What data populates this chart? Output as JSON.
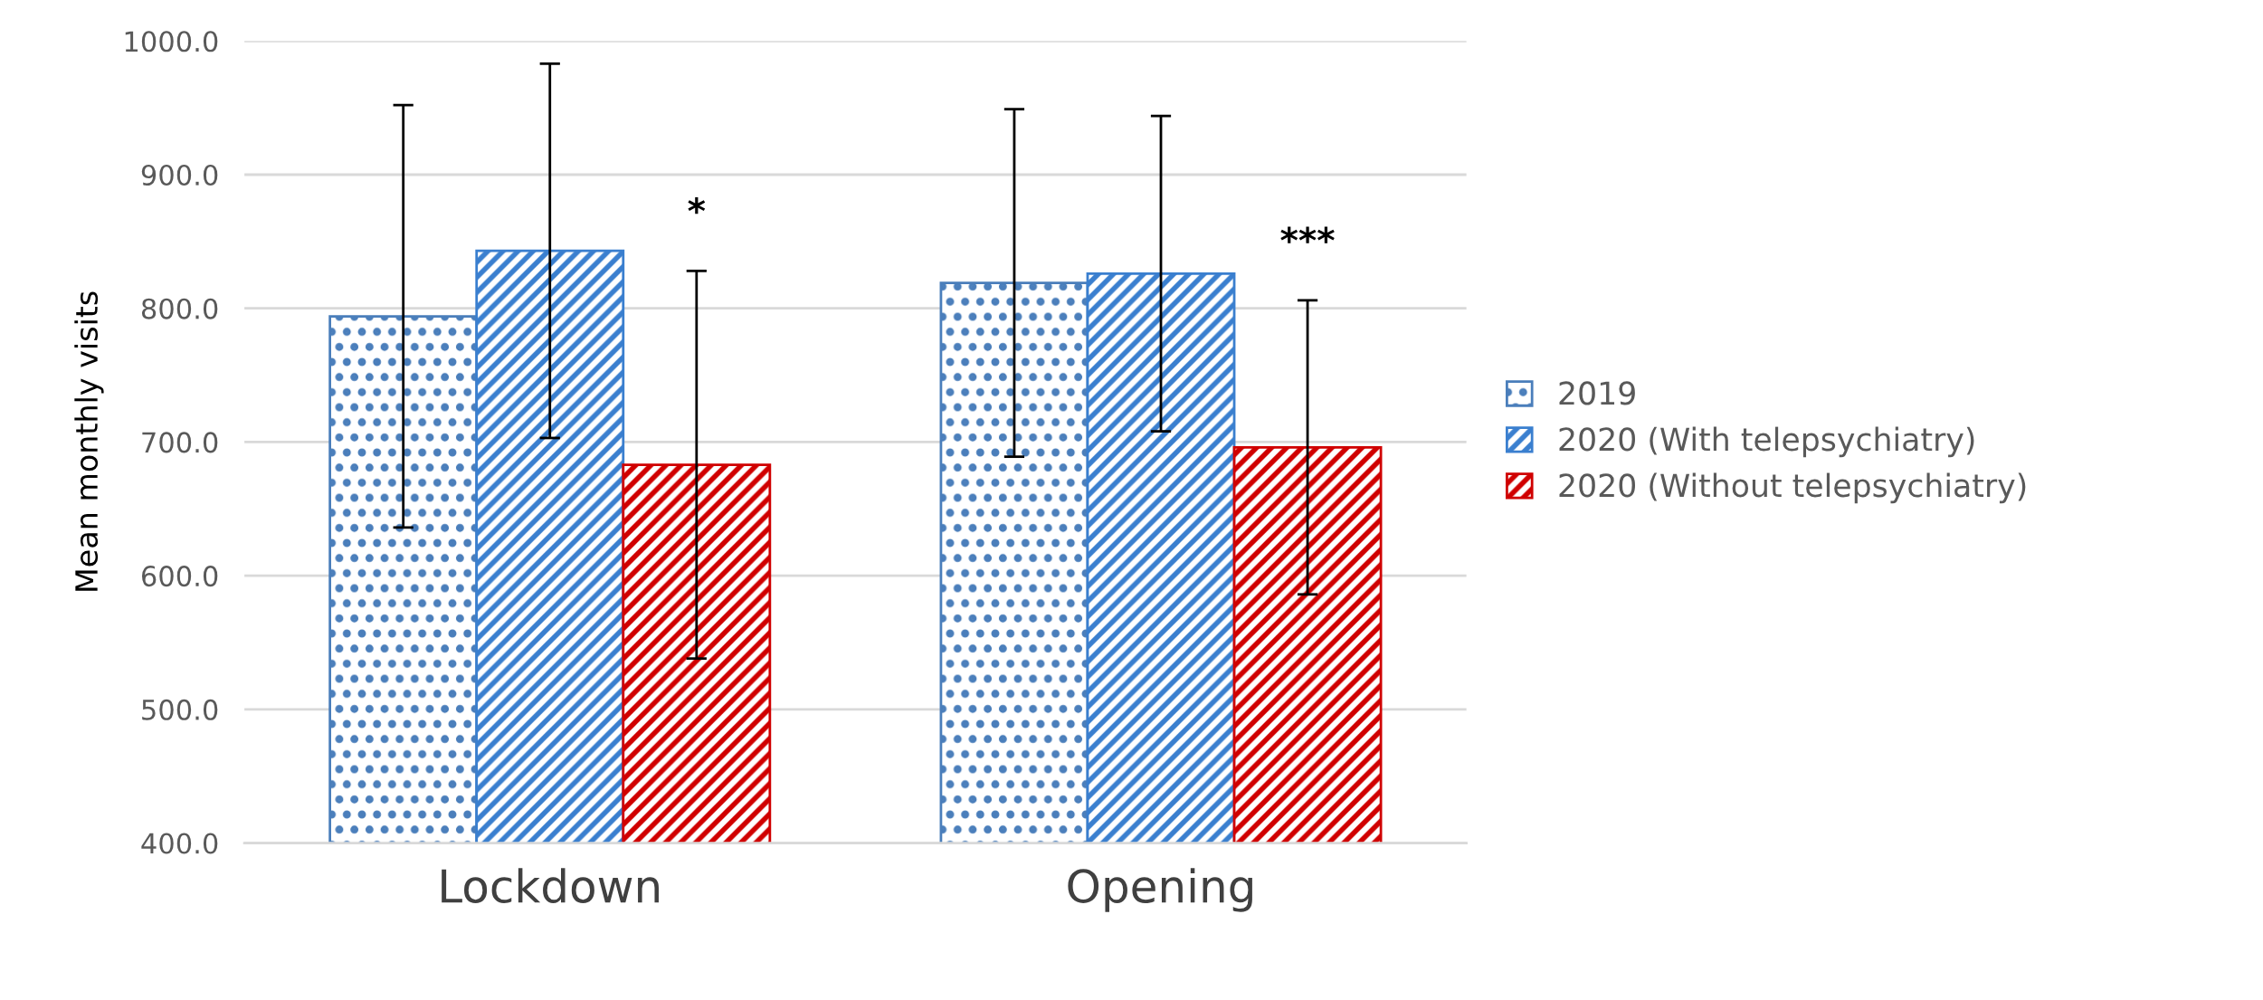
{
  "chart_data": {
    "type": "bar",
    "ylabel": "Mean monthly visits",
    "categories": [
      "Lockdown",
      "Opening"
    ],
    "series": [
      {
        "name": "2019",
        "color": "#4a7ebb",
        "values": [
          794,
          819
        ],
        "errors": [
          158,
          130
        ]
      },
      {
        "name": "2020 (With telepsychiatry)",
        "color": "#3a7fcf",
        "values": [
          843,
          826
        ],
        "errors": [
          140,
          118
        ]
      },
      {
        "name": "2020 (Without telepsychiatry)",
        "color": "#d00000",
        "values": [
          683,
          696
        ],
        "errors": [
          145,
          110
        ]
      }
    ],
    "annotations": [
      "*",
      "***"
    ],
    "ylim": [
      400,
      1000
    ],
    "yticks": [
      {
        "value": 400,
        "label": "400.0"
      },
      {
        "value": 500,
        "label": "500.0"
      },
      {
        "value": 600,
        "label": "600.0"
      },
      {
        "value": 700,
        "label": "700.0"
      },
      {
        "value": 800,
        "label": "800.0"
      },
      {
        "value": 900,
        "label": "900.0"
      },
      {
        "value": 1000,
        "label": "1000.0"
      }
    ],
    "grid": "y",
    "legend": "right"
  }
}
